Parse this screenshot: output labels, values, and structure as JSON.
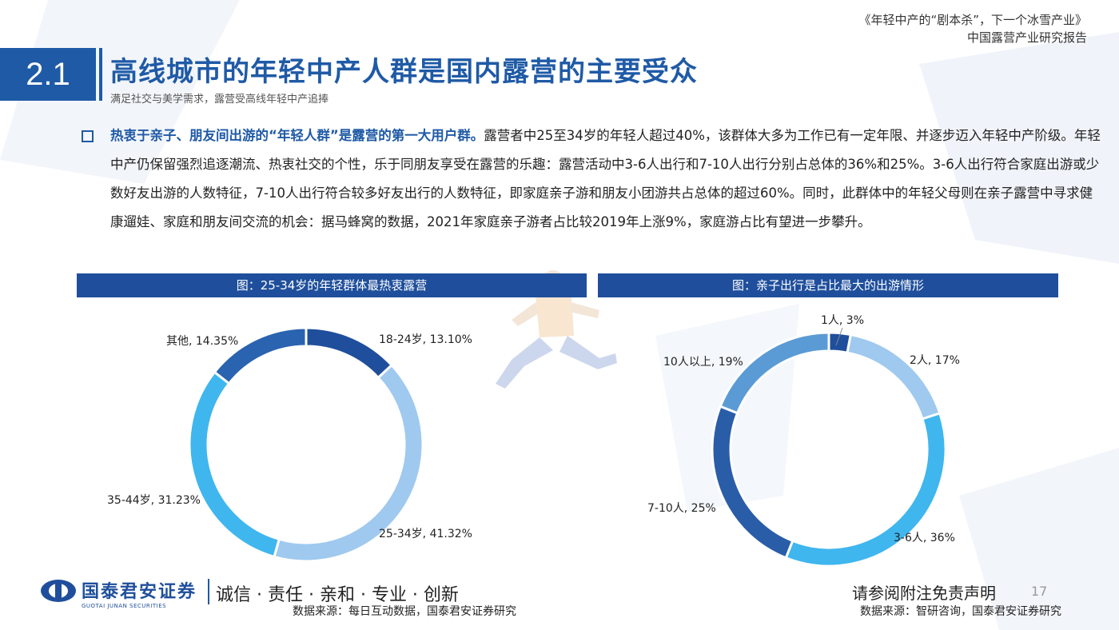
{
  "header": {
    "report_line1": "《年轻中产的“剧本杀”，下一个冰雪产业》",
    "report_line2": "中国露营产业研究报告"
  },
  "section": {
    "number": "2.1",
    "title": "高线城市的年轻中产人群是国内露营的主要受众",
    "subtitle": "满足社交与美学需求，露营受高线年轻中产追捧"
  },
  "body": {
    "highlight": "热衷于亲子、朋友间出游的“年轻人群”是露营的第一大用户群。",
    "text": "露营者中25至34岁的年轻人超过40%，该群体大多为工作已有一定年限、并逐步迈入年轻中产阶级。年轻中产仍保留强烈追逐潮流、热衷社交的个性，乐于同朋友享受在露营的乐趣：露营活动中3-6人出行和7-10人出行分别占总体的36%和25%。3-6人出行符合家庭出游或少数好友出游的人数特征，7-10人出行符合较多好友出行的人数特征，即家庭亲子游和朋友小团游共占总体的超过60%。同时，此群体中的年轻父母则在亲子露营中寻求健康遛娃、家庭和朋友间交流的机会：据马蜂窝的数据，2021年家庭亲子游者占比较2019年上涨9%，家庭游占比有望进一步攀升。"
  },
  "chart_data": [
    {
      "type": "pie",
      "title": "图：25-34岁的年轻群体最热衷露营",
      "donut": true,
      "categories": [
        "18-24岁",
        "25-34岁",
        "35-44岁",
        "其他"
      ],
      "values": [
        13.1,
        41.32,
        31.23,
        14.35
      ],
      "labels": [
        "18-24岁, 13.10%",
        "25-34岁, 41.32%",
        "35-44岁, 31.23%",
        "其他, 14.35%"
      ],
      "colors": [
        "#1f4f9c",
        "#9fc9ef",
        "#3fb6ee",
        "#2a63b0"
      ],
      "source": "数据来源：每日互动数据，国泰君安证券研究"
    },
    {
      "type": "pie",
      "title": "图：亲子出行是占比最大的出游情形",
      "donut": true,
      "categories": [
        "1人",
        "2人",
        "3-6人",
        "7-10人",
        "10人以上"
      ],
      "values": [
        3,
        17,
        36,
        25,
        19
      ],
      "labels": [
        "1人, 3%",
        "2人, 17%",
        "3-6人, 36%",
        "7-10人, 25%",
        "10人以上, 19%"
      ],
      "colors": [
        "#1f4f9c",
        "#9fc9ef",
        "#3fb6ee",
        "#2a5da8",
        "#5b9bd5"
      ],
      "source": "数据来源：智研咨询，国泰君安证券研究"
    }
  ],
  "footer": {
    "logo_cn": "国泰君安证券",
    "logo_en": "GUOTAI JUNAN SECURITIES",
    "slogan": "诚信 · 责任 · 亲和 · 专业 · 创新",
    "disclaimer": "请参阅附注免责声明",
    "page": "17"
  }
}
